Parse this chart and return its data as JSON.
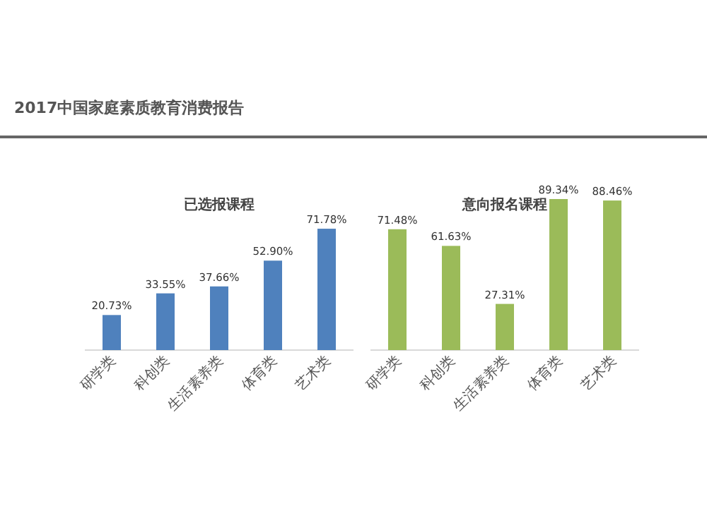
{
  "chart_data": [
    {
      "type": "bar",
      "title": "已选报课程",
      "annotations": [
        "2017中国家庭素质教育消费报告"
      ],
      "categories": [
        "研学类",
        "科创类",
        "生活素养类",
        "体育类",
        "艺术类"
      ],
      "values": [
        20.73,
        33.55,
        37.66,
        52.9,
        71.78
      ],
      "value_labels": [
        "20.73%",
        "33.55%",
        "37.66%",
        "52.90%",
        "71.78%"
      ],
      "color": "#4f81bd"
    },
    {
      "type": "bar",
      "title": "意向报名课程",
      "categories": [
        "研学类",
        "科创类",
        "生活素养类",
        "体育类",
        "艺术类"
      ],
      "values": [
        71.48,
        61.63,
        27.31,
        89.34,
        88.46
      ],
      "value_labels": [
        "71.48%",
        "61.63%",
        "27.31%",
        "89.34%",
        "88.46%"
      ],
      "color": "#9bbb59"
    }
  ]
}
